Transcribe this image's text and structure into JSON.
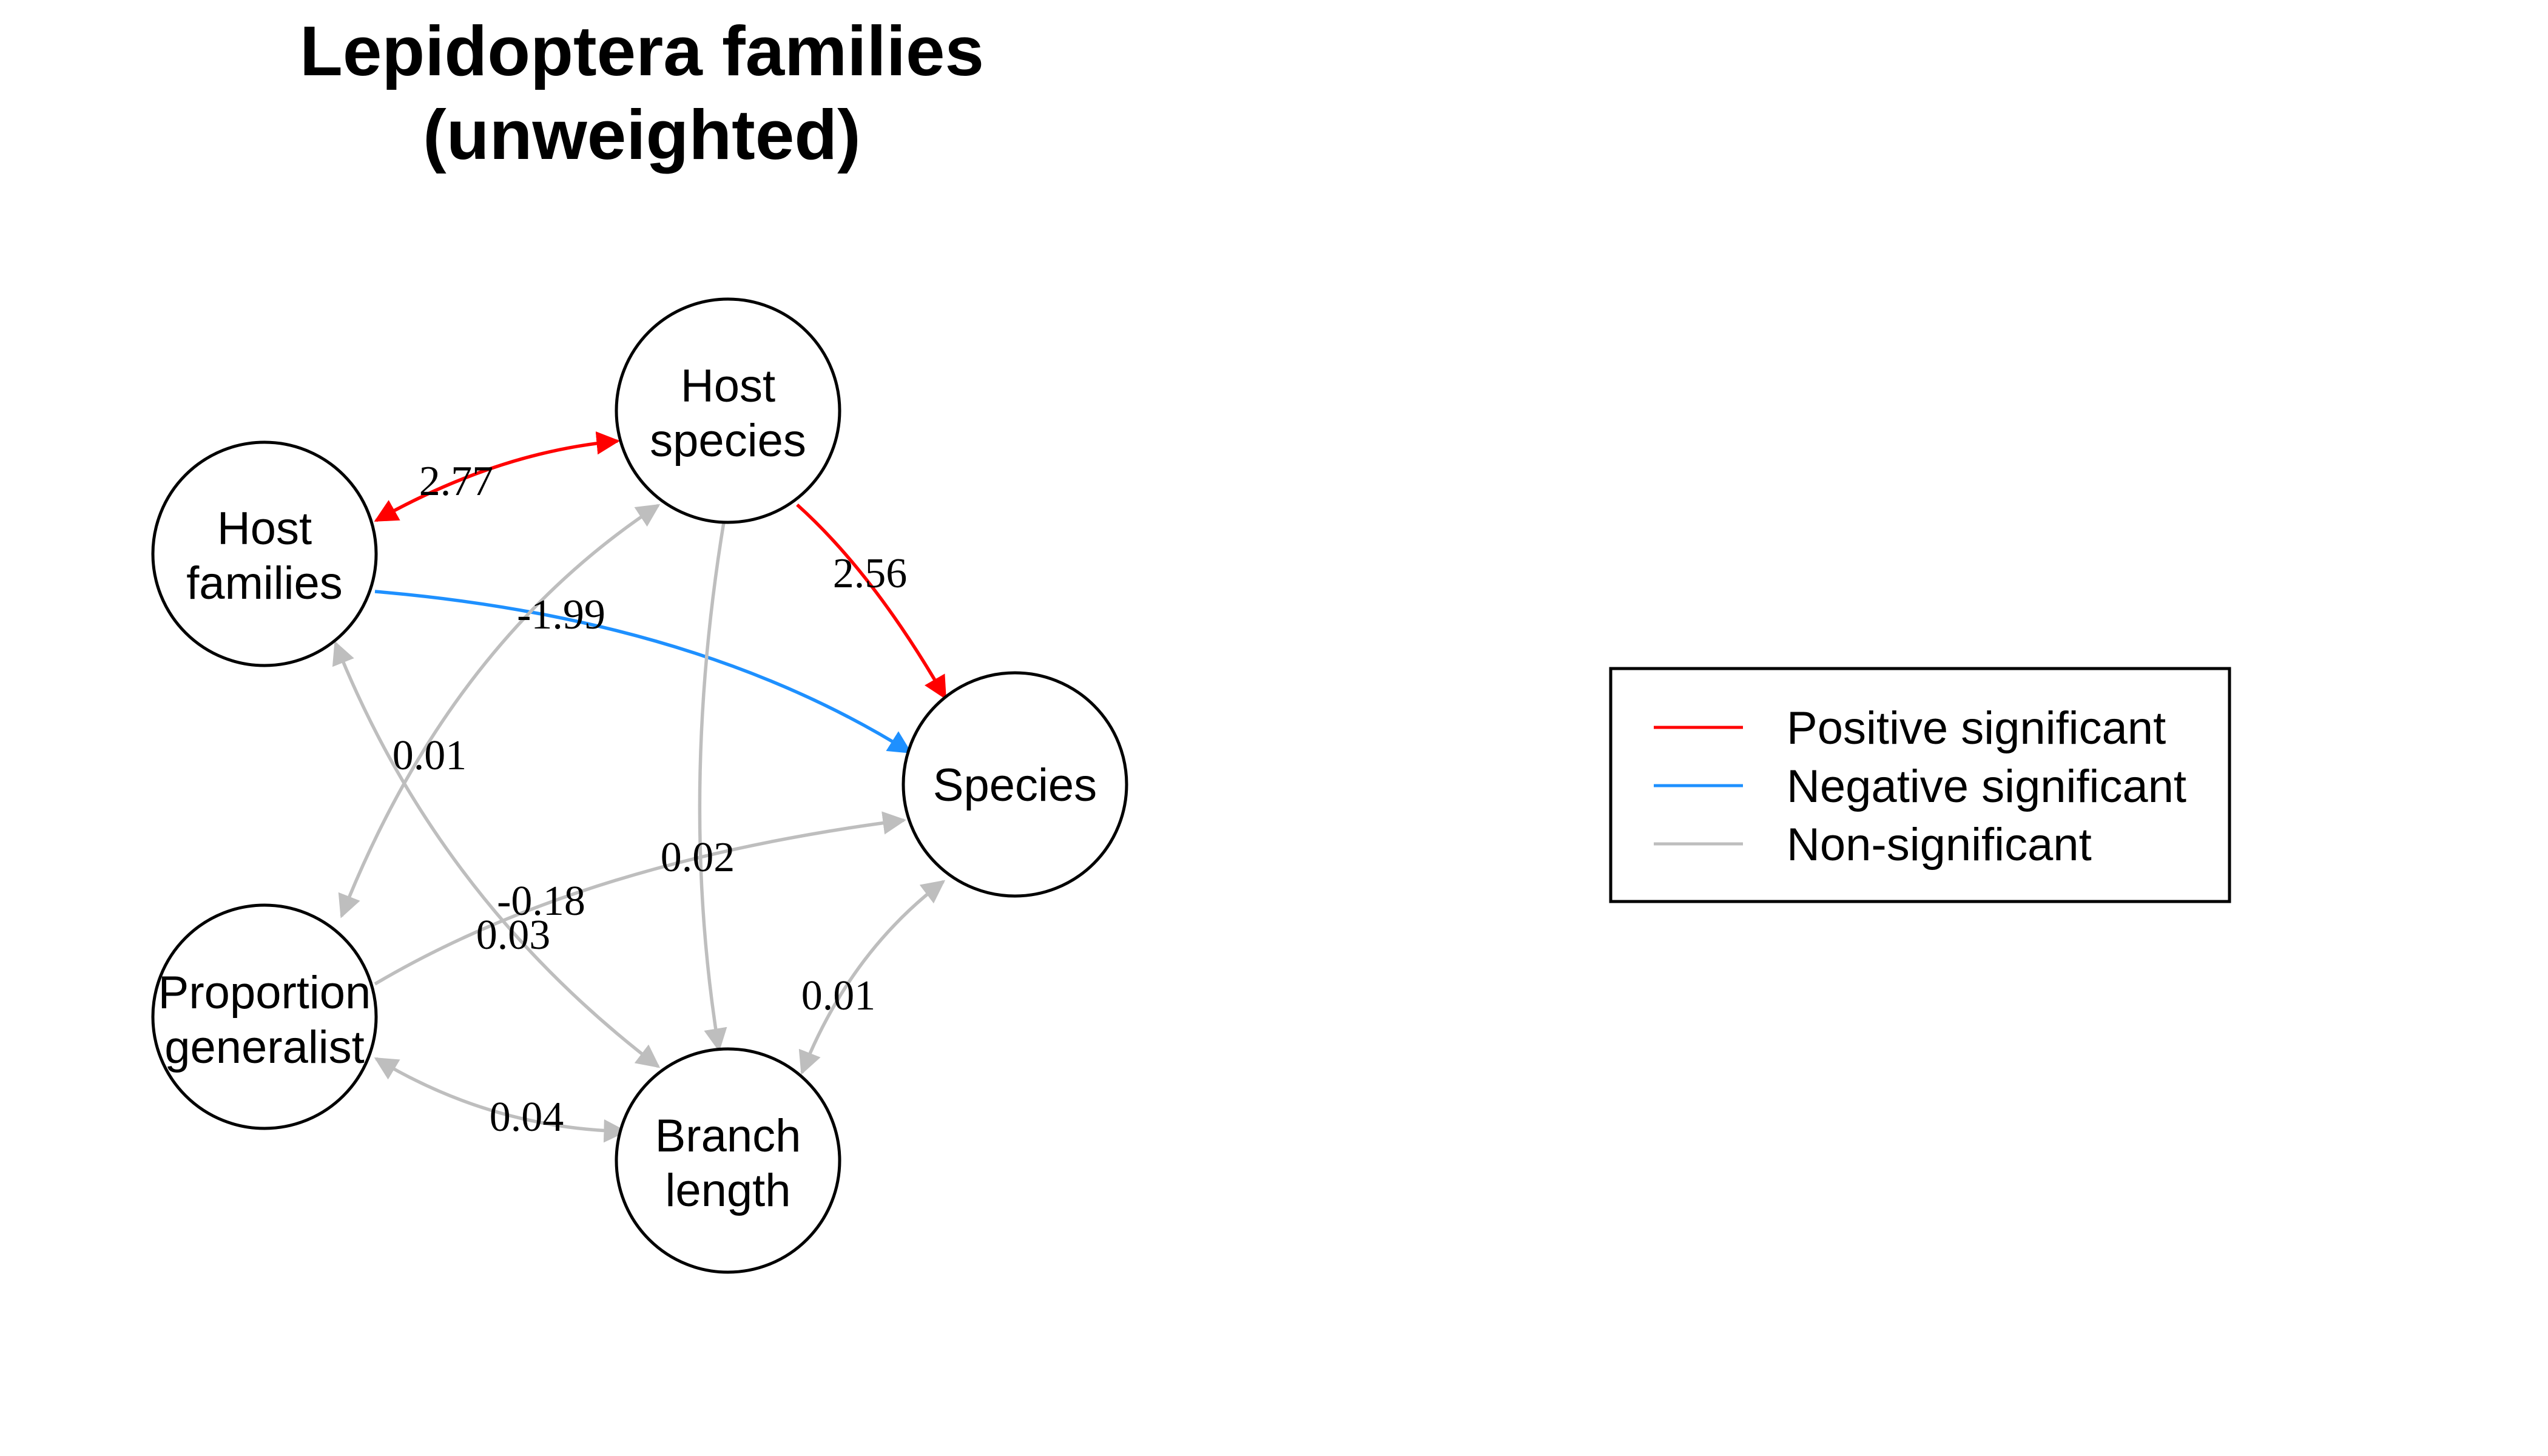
{
  "title": [
    "Lepidoptera families",
    "(unweighted)"
  ],
  "colors": {
    "positive": "#ff0000",
    "negative": "#1e90ff",
    "nonsig": "#bebebe"
  },
  "nodes": [
    {
      "id": "host_families",
      "label": [
        "Host",
        "families"
      ]
    },
    {
      "id": "host_species",
      "label": [
        "Host",
        "species"
      ]
    },
    {
      "id": "species",
      "label": [
        "Species"
      ]
    },
    {
      "id": "proportion_generalist",
      "label": [
        "Proportion",
        "generalist"
      ]
    },
    {
      "id": "branch_length",
      "label": [
        "Branch",
        "length"
      ]
    }
  ],
  "edges": [
    {
      "from": "host_species",
      "to": "host_families",
      "value": "2.77",
      "type": "positive",
      "bidirectional": true
    },
    {
      "from": "host_species",
      "to": "species",
      "value": "2.56",
      "type": "positive",
      "bidirectional": false
    },
    {
      "from": "host_families",
      "to": "species",
      "value": "-1.99",
      "type": "negative",
      "bidirectional": false
    },
    {
      "from": "host_species",
      "to": "proportion_generalist",
      "value": "0.01",
      "type": "nonsig",
      "bidirectional": true
    },
    {
      "from": "host_families",
      "to": "branch_length",
      "value": "-0.18",
      "type": "nonsig",
      "bidirectional": true
    },
    {
      "from": "host_species",
      "to": "branch_length",
      "value": "0.02",
      "type": "nonsig",
      "bidirectional": true
    },
    {
      "from": "proportion_generalist",
      "to": "species",
      "value": "0.03",
      "type": "nonsig",
      "bidirectional": false
    },
    {
      "from": "species",
      "to": "branch_length",
      "value": "0.01",
      "type": "nonsig",
      "bidirectional": true
    },
    {
      "from": "proportion_generalist",
      "to": "branch_length",
      "value": "0.04",
      "type": "nonsig",
      "bidirectional": true
    }
  ],
  "legend": [
    {
      "label": "Positive significant",
      "type": "positive"
    },
    {
      "label": "Negative significant",
      "type": "negative"
    },
    {
      "label": "Non-significant",
      "type": "nonsig"
    }
  ]
}
